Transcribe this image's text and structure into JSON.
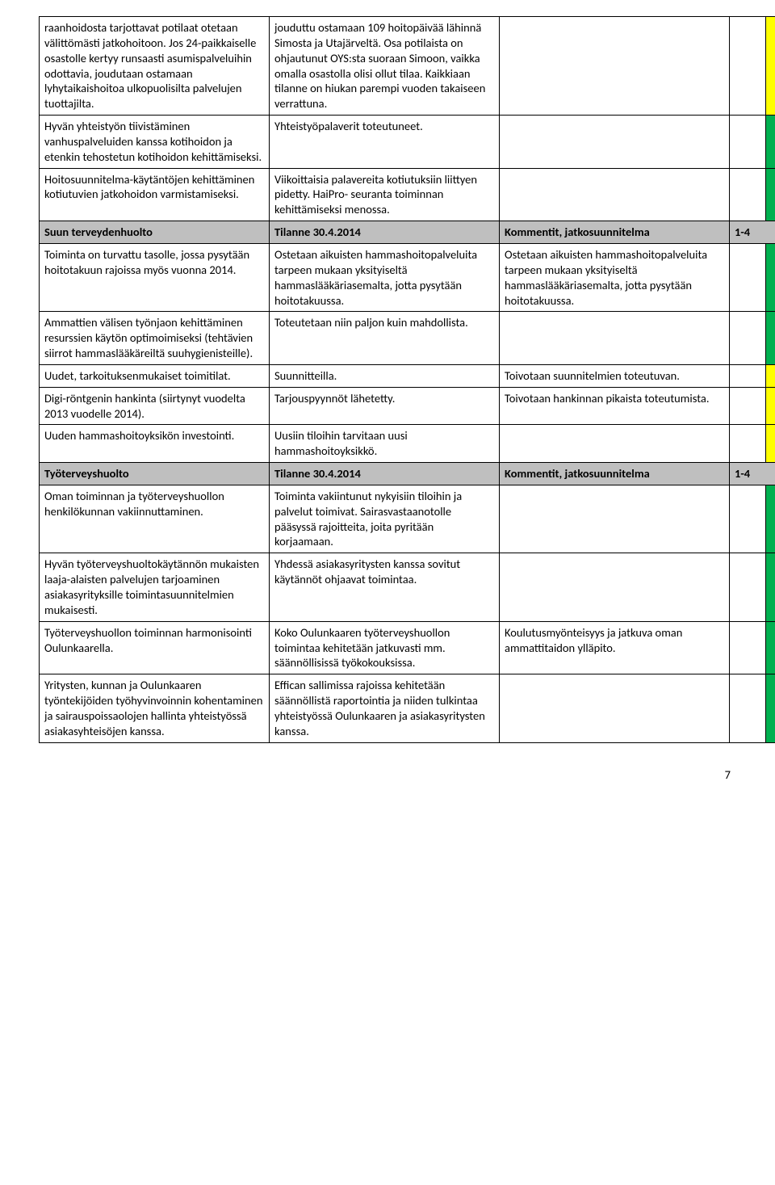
{
  "colors": {
    "grey": "#bfbfbf",
    "yellow": "#ffff00",
    "green": "#00b050",
    "border": "#000000",
    "background": "#ffffff"
  },
  "rows": [
    {
      "c1": "raanhoidosta tarjottavat potilaat otetaan välittömästi jatkohoitoon. Jos 24-paikkaiselle osastolle kertyy runsaasti asumispalveluihin odottavia, joudutaan ostamaan lyhytaikaishoitoa ulkopuolisilta palvelujen tuottajilta.",
      "c2": "jouduttu ostamaan 109 hoitopäivää lähinnä Simosta ja Utajärveltä. Osa potilaista on ohjautunut OYS:sta suoraan Simoon, vaikka omalla osastolla olisi ollut tilaa. Kaikkiaan tilanne on hiukan parempi vuoden takaiseen verrattuna.",
      "c3": "",
      "c4": "",
      "c5": "yellow"
    },
    {
      "c1": "Hyvän yhteistyön tiivistäminen vanhuspalveluiden kanssa kotihoidon ja etenkin tehostetun kotihoidon kehittämiseksi.",
      "c2": "Yhteistyöpalaverit toteutuneet.",
      "c3": "",
      "c4": "",
      "c5": "green"
    },
    {
      "c1": "Hoitosuunnitelma-käytäntöjen kehittäminen kotiutuvien jatkohoidon varmistamiseksi.",
      "c2": "Viikoittaisia palavereita kotiutuksiin liittyen pidetty. HaiPro- seuranta toiminnan kehittämiseksi menossa.",
      "c3": "",
      "c4": "",
      "c5": "green"
    }
  ],
  "section1": {
    "c1": "Suun terveydenhuolto",
    "c2": "Tilanne 30.4.2014",
    "c3": "Kommentit, jatkosuunnitelma",
    "c4": "1-4"
  },
  "s1rows": [
    {
      "c1": "Toiminta on turvattu tasolle, jossa pysytään hoitotakuun rajoissa myös vuonna 2014.",
      "c2": "Ostetaan aikuisten hammashoitopalveluita tarpeen mukaan yksityiseltä hammaslääkäriasemalta, jotta pysytään hoitotakuussa.",
      "c3": "Ostetaan aikuisten hammashoitopalveluita tarpeen mukaan yksityiseltä hammaslääkäriasemalta, jotta pysytään hoitotakuussa.",
      "c4": "",
      "c5": "green"
    },
    {
      "c1": "Ammattien välisen työnjaon kehittäminen resurssien käytön optimoimiseksi (tehtävien siirrot hammaslääkäreiltä suuhygienisteille).",
      "c2": "Toteutetaan niin paljon kuin mahdollista.",
      "c3": "",
      "c4": "",
      "c5": "green"
    },
    {
      "c1": "Uudet, tarkoituksenmukaiset toimitilat.",
      "c2": "Suunnitteilla.",
      "c3": "Toivotaan suunnitelmien toteutuvan.",
      "c4": "",
      "c5": "yellow"
    },
    {
      "c1": "Digi-röntgenin hankinta (siirtynyt vuodelta 2013 vuodelle 2014).",
      "c2": "Tarjouspyynnöt lähetetty.",
      "c3": "Toivotaan hankinnan pikaista toteutumista.",
      "c4": "",
      "c5": "yellow"
    },
    {
      "c1": "Uuden hammashoitoyksikön investointi.",
      "c2": "Uusiin tiloihin tarvitaan uusi hammashoitoyksikkö.",
      "c3": "",
      "c4": "",
      "c5": "yellow"
    }
  ],
  "section2": {
    "c1": "Työterveyshuolto",
    "c2": "Tilanne 30.4.2014",
    "c3": "Kommentit, jatkosuunnitelma",
    "c4": "1-4"
  },
  "s2rows": [
    {
      "c1": "Oman toiminnan ja työterveyshuollon henkilökunnan vakiinnuttaminen.",
      "c2": "Toiminta vakiintunut nykyisiin tiloihin ja palvelut toimivat. Sairasvastaanotolle pääsyssä rajoitteita, joita pyritään korjaamaan.",
      "c3": "",
      "c4": "",
      "c5": "green"
    },
    {
      "c1": "Hyvän työterveyshuoltokäytännön mukaisten laaja-alaisten palvelujen tarjoaminen asiakasyrityksille toimintasuunnitelmien mukaisesti.",
      "c2": "Yhdessä asiakasyritysten kanssa sovitut käytännöt ohjaavat toimintaa.",
      "c3": "",
      "c4": "",
      "c5": "green"
    },
    {
      "c1": "Työterveyshuollon toiminnan harmonisointi Oulunkaarella.",
      "c2": "Koko Oulunkaaren työterveyshuollon toimintaa kehitetään jatkuvasti mm. säännöllisissä työkokouksissa.",
      "c3": "Koulutusmyönteisyys ja jatkuva oman ammattitaidon ylläpito.",
      "c4": "",
      "c5": "green"
    },
    {
      "c1": "Yritysten, kunnan ja Oulunkaaren työntekijöiden työhyvinvoinnin kohentaminen ja sairauspoissaolojen hallinta yhteistyössä asiakasyhteisöjen kanssa.",
      "c2": "Effican sallimissa rajoissa kehitetään säännöllistä raportointia ja niiden tulkintaa yhteistyössä Oulunkaaren ja asiakasyritysten kanssa.",
      "c3": "",
      "c4": "",
      "c5": "green"
    }
  ],
  "pageNumber": "7"
}
